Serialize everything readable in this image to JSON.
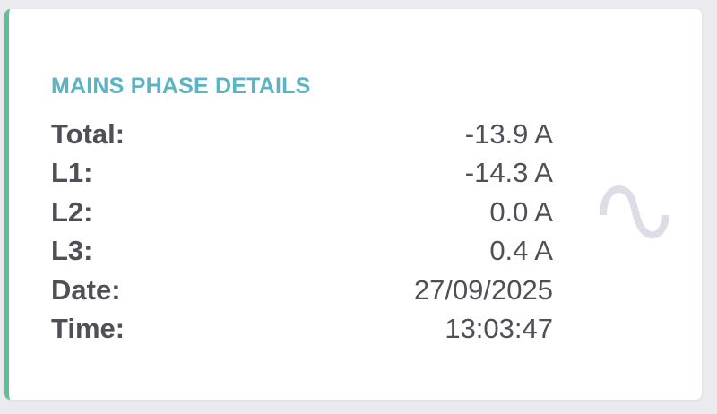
{
  "card": {
    "title": "MAINS PHASE DETAILS",
    "accent_color": "#5cc28f",
    "title_color": "#5bb3c4",
    "icon": "sine-wave-icon",
    "rows": [
      {
        "label": "Total:",
        "value": "-13.9 A"
      },
      {
        "label": "L1:",
        "value": "-14.3 A"
      },
      {
        "label": "L2:",
        "value": "0.0 A"
      },
      {
        "label": "L3:",
        "value": "0.4 A"
      },
      {
        "label": "Date:",
        "value": "27/09/2025"
      },
      {
        "label": "Time:",
        "value": "13:03:47"
      }
    ]
  }
}
